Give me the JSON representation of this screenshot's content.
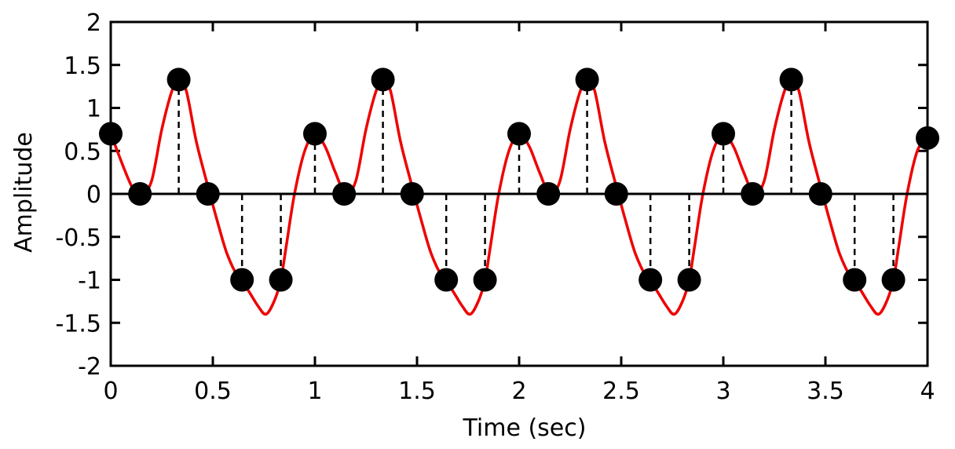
{
  "chart_data": {
    "type": "line",
    "title": "",
    "xlabel": "Time (sec)",
    "ylabel": "Amplitude",
    "xlim": [
      0,
      4
    ],
    "ylim": [
      -2,
      2
    ],
    "grid": false,
    "legend": "none",
    "x_ticks": [
      0,
      0.5,
      1,
      1.5,
      2,
      2.5,
      3,
      3.5,
      4
    ],
    "x_tick_labels": [
      "0",
      "0.5",
      "1",
      "1.5",
      "2",
      "2.5",
      "3",
      "3.5",
      "4"
    ],
    "y_ticks": [
      2,
      1.5,
      1,
      0.5,
      0,
      -0.5,
      -1,
      -1.5,
      -2
    ],
    "y_tick_labels": [
      "2",
      "1.5",
      "1",
      "0.5",
      "0",
      "-0.5",
      "-1",
      "-1.5",
      "-2"
    ],
    "series": [
      {
        "kind": "continuous-curve",
        "color": "#ee0000",
        "x": [
          0,
          0.1,
          0.15,
          0.2,
          0.25,
          0.3,
          0.333,
          0.37,
          0.42,
          0.48,
          0.52,
          0.57,
          0.63,
          0.667,
          0.72,
          0.76,
          0.8,
          0.833,
          0.86,
          0.9,
          0.95,
          1.0,
          1.05,
          1.1,
          1.15,
          1.2,
          1.25,
          1.3,
          1.333,
          1.37,
          1.42,
          1.48,
          1.52,
          1.57,
          1.63,
          1.667,
          1.72,
          1.76,
          1.8,
          1.833,
          1.86,
          1.9,
          1.95,
          2.0,
          2.05,
          2.1,
          2.15,
          2.2,
          2.25,
          2.3,
          2.333,
          2.37,
          2.42,
          2.48,
          2.52,
          2.57,
          2.63,
          2.667,
          2.72,
          2.76,
          2.8,
          2.833,
          2.86,
          2.9,
          2.95,
          3.0,
          3.05,
          3.1,
          3.15,
          3.2,
          3.25,
          3.3,
          3.333,
          3.37,
          3.42,
          3.48,
          3.52,
          3.57,
          3.63,
          3.667,
          3.72,
          3.76,
          3.8,
          3.833,
          3.86,
          3.9,
          3.95,
          4.0
        ],
        "y": [
          0.7,
          0.1,
          0.0,
          0.15,
          0.75,
          1.2,
          1.33,
          1.2,
          0.6,
          0.05,
          -0.3,
          -0.7,
          -1.0,
          -1.1,
          -1.3,
          -1.4,
          -1.25,
          -1.0,
          -0.6,
          0.0,
          0.5,
          0.7,
          0.55,
          0.25,
          0.0,
          0.15,
          0.75,
          1.2,
          1.33,
          1.2,
          0.6,
          0.05,
          -0.3,
          -0.7,
          -1.0,
          -1.1,
          -1.3,
          -1.4,
          -1.25,
          -1.0,
          -0.6,
          0.0,
          0.5,
          0.7,
          0.55,
          0.25,
          0.0,
          0.15,
          0.75,
          1.2,
          1.33,
          1.2,
          0.6,
          0.05,
          -0.3,
          -0.7,
          -1.0,
          -1.1,
          -1.3,
          -1.4,
          -1.25,
          -1.0,
          -0.6,
          0.0,
          0.5,
          0.7,
          0.55,
          0.25,
          0.0,
          0.15,
          0.75,
          1.2,
          1.33,
          1.2,
          0.6,
          0.05,
          -0.3,
          -0.7,
          -1.0,
          -1.1,
          -1.3,
          -1.4,
          -1.25,
          -1.0,
          -0.6,
          0.0,
          0.5,
          0.65
        ]
      },
      {
        "kind": "samples",
        "color": "#000000",
        "x": [
          0,
          0.143,
          0.333,
          0.476,
          0.643,
          0.833,
          1.0,
          1.143,
          1.333,
          1.476,
          1.643,
          1.833,
          2.0,
          2.143,
          2.333,
          2.476,
          2.643,
          2.833,
          3.0,
          3.143,
          3.333,
          3.476,
          3.643,
          3.833,
          4.0
        ],
        "y": [
          0.7,
          0.0,
          1.33,
          0.0,
          -1.0,
          -1.0,
          0.7,
          0.0,
          1.33,
          0.0,
          -1.0,
          -1.0,
          0.7,
          0.0,
          1.33,
          0.0,
          -1.0,
          -1.0,
          0.7,
          0.0,
          1.33,
          0.0,
          -1.0,
          -1.0,
          0.65
        ]
      }
    ],
    "colors": {
      "curve": "#ee0000",
      "samples": "#000000",
      "axes": "#000000"
    }
  }
}
